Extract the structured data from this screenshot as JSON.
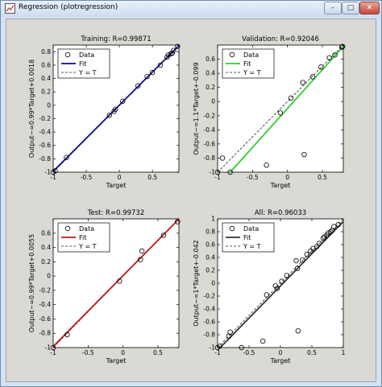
{
  "window": {
    "title": "Regression (plotregression)",
    "controls": {
      "minimize": "–",
      "maximize": "□",
      "close": "✕"
    }
  },
  "chart_data": [
    {
      "type": "scatter",
      "title": "Training: R=0.99871",
      "xlabel": "Target",
      "ylabel": "Output~=0.99*Target+0.0018",
      "xlim": [
        -1,
        0.9
      ],
      "ylim": [
        -1,
        0.9
      ],
      "xticks": [
        "-1",
        "-0.5",
        "0",
        "0.5"
      ],
      "yticks": [
        "-1",
        "-0.8",
        "-0.6",
        "-0.4",
        "-0.2",
        "0",
        "0.2",
        "0.4",
        "0.6",
        "0.8"
      ],
      "points": [
        [
          -1,
          -1
        ],
        [
          -0.97,
          -0.98
        ],
        [
          -0.8,
          -0.78
        ],
        [
          -0.15,
          -0.15
        ],
        [
          -0.08,
          -0.09
        ],
        [
          -0.06,
          -0.06
        ],
        [
          0.05,
          0.06
        ],
        [
          0.28,
          0.29
        ],
        [
          0.42,
          0.43
        ],
        [
          0.5,
          0.49
        ],
        [
          0.62,
          0.6
        ],
        [
          0.72,
          0.72
        ],
        [
          0.74,
          0.75
        ],
        [
          0.78,
          0.77
        ],
        [
          0.8,
          0.78
        ],
        [
          0.82,
          0.82
        ],
        [
          0.88,
          0.88
        ]
      ],
      "fit": {
        "slope": 0.99,
        "intercept": 0.0018,
        "color": "#0a0a8a"
      },
      "legend": [
        "Data",
        "Fit",
        "Y = T"
      ],
      "legend_position": "top-left"
    },
    {
      "type": "scatter",
      "title": "Validation: R=0.92046",
      "xlabel": "Target",
      "ylabel": "Output~=1.1*Target+-0.099",
      "xlim": [
        -1,
        0.8
      ],
      "ylim": [
        -1,
        0.8
      ],
      "xticks": [
        "-1",
        "-0.5",
        "0",
        "0.5"
      ],
      "yticks": [
        "-1",
        "-0.8",
        "-0.6",
        "-0.4",
        "-0.2",
        "0",
        "0.2",
        "0.4",
        "0.6"
      ],
      "points": [
        [
          -1,
          -1
        ],
        [
          -0.93,
          -0.8
        ],
        [
          -0.82,
          -1
        ],
        [
          -0.3,
          -0.9
        ],
        [
          -0.1,
          -0.16
        ],
        [
          0.05,
          0.05
        ],
        [
          0.22,
          0.27
        ],
        [
          0.24,
          -0.75
        ],
        [
          0.36,
          0.35
        ],
        [
          0.48,
          0.49
        ],
        [
          0.6,
          0.62
        ],
        [
          0.68,
          0.66
        ],
        [
          0.78,
          0.77
        ],
        [
          0.79,
          0.78
        ]
      ],
      "fit": {
        "slope": 1.1,
        "intercept": -0.099,
        "color": "#2fcf2f"
      },
      "legend": [
        "Data",
        "Fit",
        "Y = T"
      ],
      "legend_position": "top-left"
    },
    {
      "type": "scatter",
      "title": "Test: R=0.99732",
      "xlabel": "Target",
      "ylabel": "Output~=0.99*Target+0.0055",
      "xlim": [
        -1,
        0.8
      ],
      "ylim": [
        -1,
        0.8
      ],
      "xticks": [
        "-1",
        "-0.5",
        "0",
        "0.5"
      ],
      "yticks": [
        "-1",
        "-0.8",
        "-0.6",
        "-0.4",
        "-0.2",
        "0",
        "0.2",
        "0.4",
        "0.6"
      ],
      "points": [
        [
          -1,
          -1
        ],
        [
          -0.8,
          -0.82
        ],
        [
          -0.05,
          -0.07
        ],
        [
          0.25,
          0.23
        ],
        [
          0.27,
          0.35
        ],
        [
          0.58,
          0.57
        ],
        [
          0.78,
          0.76
        ]
      ],
      "fit": {
        "slope": 0.99,
        "intercept": 0.0055,
        "color": "#c01818"
      },
      "legend": [
        "Data",
        "Fit",
        "Y = T"
      ],
      "legend_position": "top-left"
    },
    {
      "type": "scatter",
      "title": "All: R=0.96033",
      "xlabel": "Target",
      "ylabel": "Output~=1*Target+-0.042",
      "xlim": [
        -1,
        1
      ],
      "ylim": [
        -1,
        1
      ],
      "xticks": [
        "-1",
        "-0.5",
        "0",
        "0.5",
        "1"
      ],
      "yticks": [
        "-1",
        "-0.8",
        "-0.6",
        "-0.4",
        "-0.2",
        "0",
        "0.2",
        "0.4",
        "0.6",
        "0.8",
        "1"
      ],
      "points": [
        [
          -1,
          -1
        ],
        [
          -0.97,
          -0.98
        ],
        [
          -0.82,
          -0.82
        ],
        [
          -0.8,
          -0.76
        ],
        [
          -0.62,
          -1
        ],
        [
          -0.22,
          -0.18
        ],
        [
          -0.28,
          -0.9
        ],
        [
          -0.05,
          -0.08
        ],
        [
          -0.08,
          -0.04
        ],
        [
          0.02,
          0.03
        ],
        [
          0.1,
          0.12
        ],
        [
          0.25,
          0.35
        ],
        [
          0.27,
          0.23
        ],
        [
          0.28,
          -0.74
        ],
        [
          0.35,
          0.36
        ],
        [
          0.42,
          0.45
        ],
        [
          0.48,
          0.5
        ],
        [
          0.52,
          0.54
        ],
        [
          0.58,
          0.57
        ],
        [
          0.62,
          0.62
        ],
        [
          0.68,
          0.7
        ],
        [
          0.7,
          0.72
        ],
        [
          0.74,
          0.75
        ],
        [
          0.76,
          0.78
        ],
        [
          0.8,
          0.8
        ],
        [
          0.82,
          0.82
        ],
        [
          0.85,
          0.88
        ],
        [
          0.92,
          0.91
        ]
      ],
      "fit": {
        "slope": 1,
        "intercept": -0.042,
        "color": "#333333"
      },
      "legend": [
        "Data",
        "Fit",
        "Y = T"
      ],
      "legend_position": "top-left"
    }
  ]
}
